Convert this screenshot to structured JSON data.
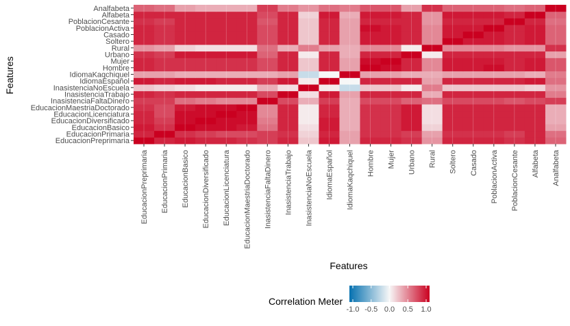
{
  "chart_data": {
    "type": "heatmap",
    "title": "",
    "xlabel": "Features",
    "ylabel": "Features",
    "x_categories": [
      "EducacionPreprimaria",
      "EducacionPrimaria",
      "EducacionBasico",
      "EducacionDiversificado",
      "EducacionLicenciatura",
      "EducacionMaestriaDoctorado",
      "InasistenciaFaltaDinero",
      "InasistenciaTrabajo",
      "InasistenciaNoEscuela",
      "IdiomaEspañol",
      "IdiomaKaqchiquel",
      "Hombre",
      "Mujer",
      "Urbano",
      "Rural",
      "Soltero",
      "Casado",
      "PoblacionActiva",
      "PoblacionCesante",
      "Alfabeta",
      "Analfabeta"
    ],
    "y_categories": [
      "EducacionPreprimaria",
      "EducacionPrimaria",
      "EducacionBasico",
      "EducacionDiversificado",
      "EducacionLicenciatura",
      "EducacionMaestriaDoctorado",
      "InasistenciaFaltaDinero",
      "InasistenciaTrabajo",
      "InasistenciaNoEscuela",
      "IdiomaEspañol",
      "IdiomaKaqchiquel",
      "Hombre",
      "Mujer",
      "Urbano",
      "Rural",
      "Soltero",
      "Casado",
      "PoblacionActiva",
      "PoblacionCesante",
      "Alfabeta",
      "Analfabeta"
    ],
    "values": [
      [
        1.0,
        0.85,
        0.9,
        0.85,
        0.85,
        0.8,
        0.75,
        0.85,
        0.2,
        0.9,
        0.35,
        0.85,
        0.85,
        0.8,
        0.4,
        0.85,
        0.85,
        0.85,
        0.8,
        0.85,
        0.6
      ],
      [
        0.85,
        1.0,
        0.8,
        0.75,
        0.7,
        0.7,
        0.75,
        0.8,
        0.15,
        0.85,
        0.35,
        0.8,
        0.8,
        0.75,
        0.35,
        0.8,
        0.8,
        0.8,
        0.75,
        0.85,
        0.55
      ],
      [
        0.9,
        0.8,
        1.0,
        0.95,
        0.95,
        0.9,
        0.55,
        0.85,
        0.1,
        0.9,
        0.3,
        0.8,
        0.8,
        0.9,
        0.15,
        0.85,
        0.85,
        0.85,
        0.85,
        0.85,
        0.35
      ],
      [
        0.85,
        0.75,
        0.95,
        1.0,
        0.95,
        0.95,
        0.5,
        0.85,
        0.05,
        0.9,
        0.3,
        0.8,
        0.8,
        0.9,
        0.1,
        0.85,
        0.85,
        0.85,
        0.85,
        0.85,
        0.3
      ],
      [
        0.85,
        0.7,
        0.95,
        0.95,
        1.0,
        0.95,
        0.45,
        0.85,
        0.05,
        0.85,
        0.3,
        0.8,
        0.8,
        0.9,
        0.1,
        0.85,
        0.85,
        0.85,
        0.85,
        0.85,
        0.3
      ],
      [
        0.8,
        0.7,
        0.9,
        0.95,
        0.95,
        1.0,
        0.45,
        0.85,
        0.05,
        0.85,
        0.3,
        0.8,
        0.8,
        0.9,
        0.1,
        0.85,
        0.85,
        0.85,
        0.85,
        0.85,
        0.3
      ],
      [
        0.75,
        0.75,
        0.55,
        0.5,
        0.45,
        0.45,
        1.0,
        0.7,
        0.3,
        0.75,
        0.3,
        0.7,
        0.7,
        0.6,
        0.55,
        0.7,
        0.7,
        0.7,
        0.65,
        0.7,
        0.75
      ],
      [
        0.85,
        0.8,
        0.85,
        0.85,
        0.85,
        0.85,
        0.7,
        1.0,
        0.1,
        0.9,
        0.35,
        0.85,
        0.85,
        0.85,
        0.3,
        0.85,
        0.85,
        0.85,
        0.85,
        0.85,
        0.5
      ],
      [
        0.2,
        0.15,
        0.1,
        0.05,
        0.05,
        0.05,
        0.3,
        0.1,
        1.0,
        0.05,
        -0.2,
        0.2,
        0.2,
        0.05,
        0.5,
        0.2,
        0.2,
        0.2,
        0.2,
        0.15,
        0.4
      ],
      [
        0.9,
        0.85,
        0.9,
        0.9,
        0.85,
        0.85,
        0.75,
        0.9,
        0.05,
        1.0,
        0.0,
        0.85,
        0.85,
        0.85,
        0.35,
        0.85,
        0.85,
        0.85,
        0.85,
        0.9,
        0.55
      ],
      [
        0.35,
        0.35,
        0.3,
        0.3,
        0.3,
        0.3,
        0.3,
        0.35,
        -0.2,
        0.0,
        1.0,
        0.35,
        0.35,
        0.3,
        0.3,
        0.35,
        0.35,
        0.35,
        0.35,
        0.3,
        0.5
      ],
      [
        0.85,
        0.8,
        0.8,
        0.8,
        0.8,
        0.8,
        0.7,
        0.85,
        0.2,
        0.85,
        0.35,
        1.0,
        0.95,
        0.85,
        0.45,
        0.9,
        0.9,
        0.95,
        0.85,
        0.9,
        0.65
      ],
      [
        0.85,
        0.8,
        0.8,
        0.8,
        0.8,
        0.8,
        0.7,
        0.85,
        0.2,
        0.85,
        0.35,
        0.95,
        1.0,
        0.85,
        0.45,
        0.9,
        0.9,
        0.9,
        0.85,
        0.9,
        0.65
      ],
      [
        0.8,
        0.75,
        0.9,
        0.9,
        0.9,
        0.9,
        0.6,
        0.85,
        0.05,
        0.85,
        0.3,
        0.85,
        0.85,
        1.0,
        0.05,
        0.85,
        0.85,
        0.85,
        0.85,
        0.85,
        0.35
      ],
      [
        0.4,
        0.35,
        0.15,
        0.1,
        0.1,
        0.1,
        0.55,
        0.3,
        0.5,
        0.35,
        0.3,
        0.45,
        0.45,
        0.05,
        1.0,
        0.45,
        0.45,
        0.45,
        0.4,
        0.4,
        0.8
      ],
      [
        0.85,
        0.8,
        0.85,
        0.85,
        0.85,
        0.85,
        0.7,
        0.85,
        0.2,
        0.85,
        0.35,
        0.9,
        0.9,
        0.85,
        0.45,
        1.0,
        0.9,
        0.9,
        0.85,
        0.9,
        0.6
      ],
      [
        0.85,
        0.8,
        0.85,
        0.85,
        0.85,
        0.85,
        0.7,
        0.85,
        0.2,
        0.85,
        0.35,
        0.9,
        0.9,
        0.85,
        0.45,
        0.9,
        1.0,
        0.9,
        0.85,
        0.9,
        0.6
      ],
      [
        0.85,
        0.8,
        0.85,
        0.85,
        0.85,
        0.85,
        0.7,
        0.85,
        0.2,
        0.85,
        0.35,
        0.95,
        0.9,
        0.85,
        0.45,
        0.9,
        0.9,
        1.0,
        0.85,
        0.9,
        0.6
      ],
      [
        0.8,
        0.75,
        0.85,
        0.85,
        0.85,
        0.85,
        0.65,
        0.85,
        0.2,
        0.85,
        0.35,
        0.85,
        0.85,
        0.85,
        0.4,
        0.85,
        0.85,
        0.85,
        1.0,
        0.85,
        0.55
      ],
      [
        0.85,
        0.85,
        0.85,
        0.85,
        0.85,
        0.85,
        0.7,
        0.85,
        0.15,
        0.9,
        0.3,
        0.9,
        0.9,
        0.85,
        0.4,
        0.9,
        0.9,
        0.9,
        0.85,
        1.0,
        0.6
      ],
      [
        0.6,
        0.55,
        0.35,
        0.3,
        0.3,
        0.3,
        0.75,
        0.5,
        0.4,
        0.55,
        0.5,
        0.65,
        0.65,
        0.35,
        0.8,
        0.6,
        0.6,
        0.6,
        0.55,
        0.6,
        1.0
      ]
    ],
    "legend": {
      "title": "Correlation Meter",
      "ticks": [
        "-1.0",
        "-0.5",
        "0.0",
        "0.5",
        "1.0"
      ],
      "range": [
        -1,
        1
      ],
      "colors": {
        "low": "#0571b0",
        "mid": "#f7f7f7",
        "high": "#ca0020"
      },
      "placement": "bottom"
    },
    "grid": true
  }
}
